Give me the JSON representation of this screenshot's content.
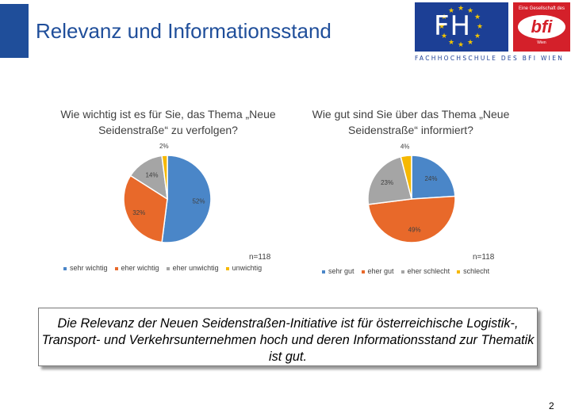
{
  "slide": {
    "title": "Relevanz und Informationsstand",
    "conclusion": "Die Relevanz der Neuen Seidenstraßen-Initiative ist für österreichische Logistik-, Transport- und Verkehrsunternehmen hoch und deren Informationsstand zur Thematik ist gut.",
    "page_number": "2"
  },
  "logo": {
    "fh_text": "FH",
    "bfi_tagline": "Eine Gesellschaft des",
    "bfi_text": "bfi",
    "bfi_sub": "Wien",
    "caption": "FACHHOCHSCHULE DES BFI WIEN",
    "colors": {
      "fh_blue": "#1c3f95",
      "star_yellow": "#f2c400",
      "bfi_red": "#d4202a"
    }
  },
  "chart_data": [
    {
      "type": "pie",
      "title": "Wie wichtig ist es für Sie, das Thema „Neue Seidenstraße“ zu verfolgen?",
      "categories": [
        "sehr wichtig",
        "eher wichtig",
        "eher unwichtig",
        "unwichtig"
      ],
      "values": [
        52,
        32,
        14,
        2
      ],
      "labels": [
        "52%",
        "32%",
        "14%",
        "2%"
      ],
      "colors": [
        "#4a86c8",
        "#e8692a",
        "#a5a5a5",
        "#f6b800"
      ],
      "n_label": "n=118",
      "legend_position": "bottom"
    },
    {
      "type": "pie",
      "title": "Wie gut sind Sie über das Thema „Neue Seidenstraße“ informiert?",
      "categories": [
        "sehr gut",
        "eher gut",
        "eher schlecht",
        "schlecht"
      ],
      "values": [
        24,
        49,
        23,
        4
      ],
      "labels": [
        "24%",
        "49%",
        "23%",
        "4%"
      ],
      "colors": [
        "#4a86c8",
        "#e8692a",
        "#a5a5a5",
        "#f6b800"
      ],
      "n_label": "n=118",
      "legend_position": "bottom"
    }
  ]
}
